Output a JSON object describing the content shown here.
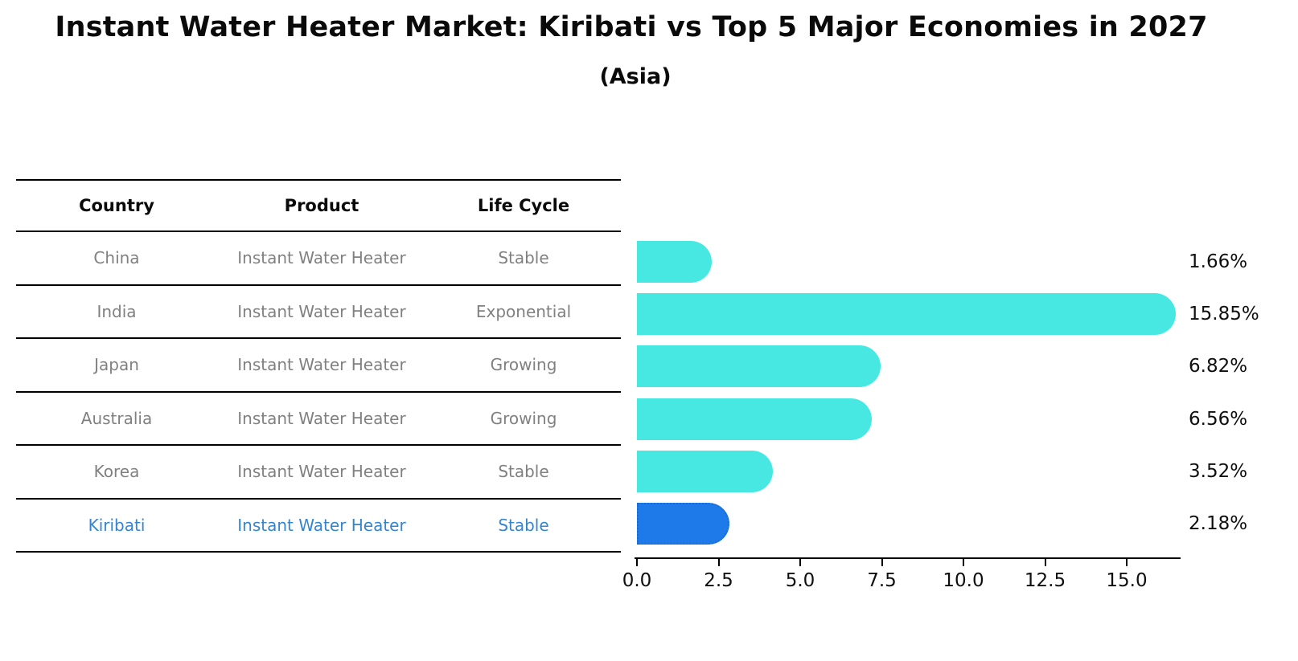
{
  "title": "Instant Water Heater Market: Kiribati vs Top 5 Major Economies in 2027",
  "subtitle": "(Asia)",
  "table": {
    "columns": [
      "Country",
      "Product",
      "Life Cycle"
    ],
    "rows": [
      {
        "country": "China",
        "product": "Instant Water Heater",
        "life_cycle": "Stable",
        "highlight": false
      },
      {
        "country": "India",
        "product": "Instant Water Heater",
        "life_cycle": "Exponential",
        "highlight": false
      },
      {
        "country": "Japan",
        "product": "Instant Water Heater",
        "life_cycle": "Growing",
        "highlight": false
      },
      {
        "country": "Australia",
        "product": "Instant Water Heater",
        "life_cycle": "Growing",
        "highlight": false
      },
      {
        "country": "Korea",
        "product": "Instant Water Heater",
        "life_cycle": "Stable",
        "highlight": false
      },
      {
        "country": "Kiribati",
        "product": "Instant Water Heater",
        "life_cycle": "Stable",
        "highlight": true
      }
    ]
  },
  "chart_data": {
    "type": "bar",
    "orientation": "horizontal",
    "categories": [
      "China",
      "India",
      "Japan",
      "Australia",
      "Korea",
      "Kiribati"
    ],
    "values": [
      1.66,
      15.85,
      6.82,
      6.56,
      3.52,
      2.18
    ],
    "value_labels": [
      "1.66%",
      "15.85%",
      "6.82%",
      "6.56%",
      "3.52%",
      "2.18%"
    ],
    "x_tick_labels": [
      "0.0",
      "2.5",
      "5.0",
      "7.5",
      "10.0",
      "12.5",
      "15.0"
    ],
    "x_tick_values": [
      0,
      2.5,
      5,
      7.5,
      10,
      12.5,
      15
    ],
    "xlim": [
      0,
      16.7
    ],
    "grid": false,
    "legend": "none",
    "bar_color": "#48e8e2",
    "highlight_index": 5,
    "highlight_color": "#1e7ae8",
    "highlight_border_color": "#1a6cd8",
    "highlight_border_style": "dotted",
    "highlight_text_color": "#3585ce",
    "row_text_color": "#808080"
  }
}
